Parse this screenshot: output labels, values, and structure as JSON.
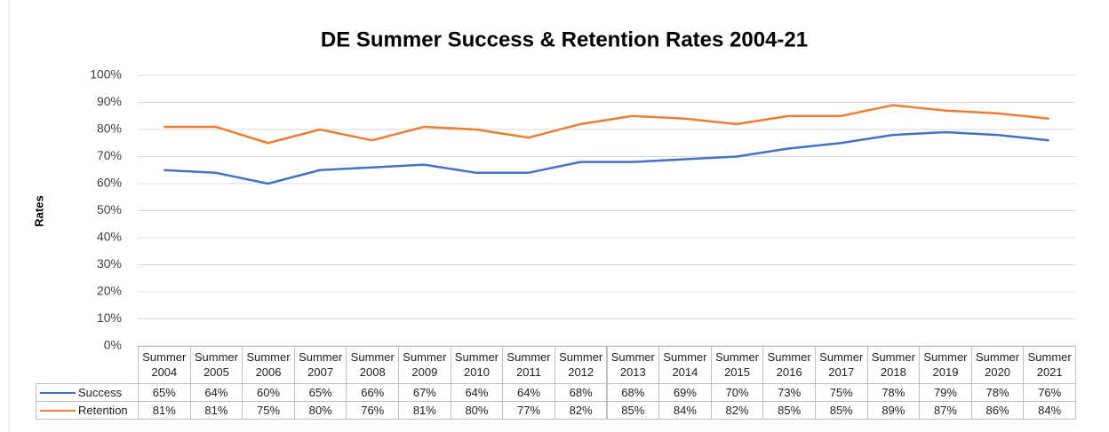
{
  "chart_data": {
    "type": "line",
    "title": "DE Summer Success & Retention Rates 2004-21",
    "y_label": "Rates",
    "categories": [
      "Summer 2004",
      "Summer 2005",
      "Summer 2006",
      "Summer 2007",
      "Summer 2008",
      "Summer 2009",
      "Summer 2010",
      "Summer 2011",
      "Summer 2012",
      "Summer 2013",
      "Summer 2014",
      "Summer 2015",
      "Summer 2016",
      "Summer 2017",
      "Summer 2018",
      "Summer 2019",
      "Summer 2020",
      "Summer 2021"
    ],
    "series": [
      {
        "name": "Success",
        "color": "#4472c4",
        "values": [
          65,
          64,
          60,
          65,
          66,
          67,
          64,
          64,
          68,
          68,
          69,
          70,
          73,
          75,
          78,
          79,
          78,
          76
        ],
        "value_labels": [
          "65%",
          "64%",
          "60%",
          "65%",
          "66%",
          "67%",
          "64%",
          "64%",
          "68%",
          "68%",
          "69%",
          "70%",
          "73%",
          "75%",
          "78%",
          "79%",
          "78%",
          "76%"
        ]
      },
      {
        "name": "Retention",
        "color": "#ed7d31",
        "values": [
          81,
          81,
          75,
          80,
          76,
          81,
          80,
          77,
          82,
          85,
          84,
          82,
          85,
          85,
          89,
          87,
          86,
          84
        ],
        "value_labels": [
          "81%",
          "81%",
          "75%",
          "80%",
          "76%",
          "81%",
          "80%",
          "77%",
          "82%",
          "85%",
          "84%",
          "82%",
          "85%",
          "85%",
          "89%",
          "87%",
          "86%",
          "84%"
        ]
      }
    ],
    "ylim": [
      0,
      100
    ],
    "yticks": [
      {
        "value": 0,
        "label": "0%"
      },
      {
        "value": 10,
        "label": "10%"
      },
      {
        "value": 20,
        "label": "20%"
      },
      {
        "value": 30,
        "label": "30%"
      },
      {
        "value": 40,
        "label": "40%"
      },
      {
        "value": 50,
        "label": "50%"
      },
      {
        "value": 60,
        "label": "60%"
      },
      {
        "value": 70,
        "label": "70%"
      },
      {
        "value": 80,
        "label": "80%"
      },
      {
        "value": 90,
        "label": "90%"
      },
      {
        "value": 100,
        "label": "100%"
      }
    ],
    "grid": true
  }
}
